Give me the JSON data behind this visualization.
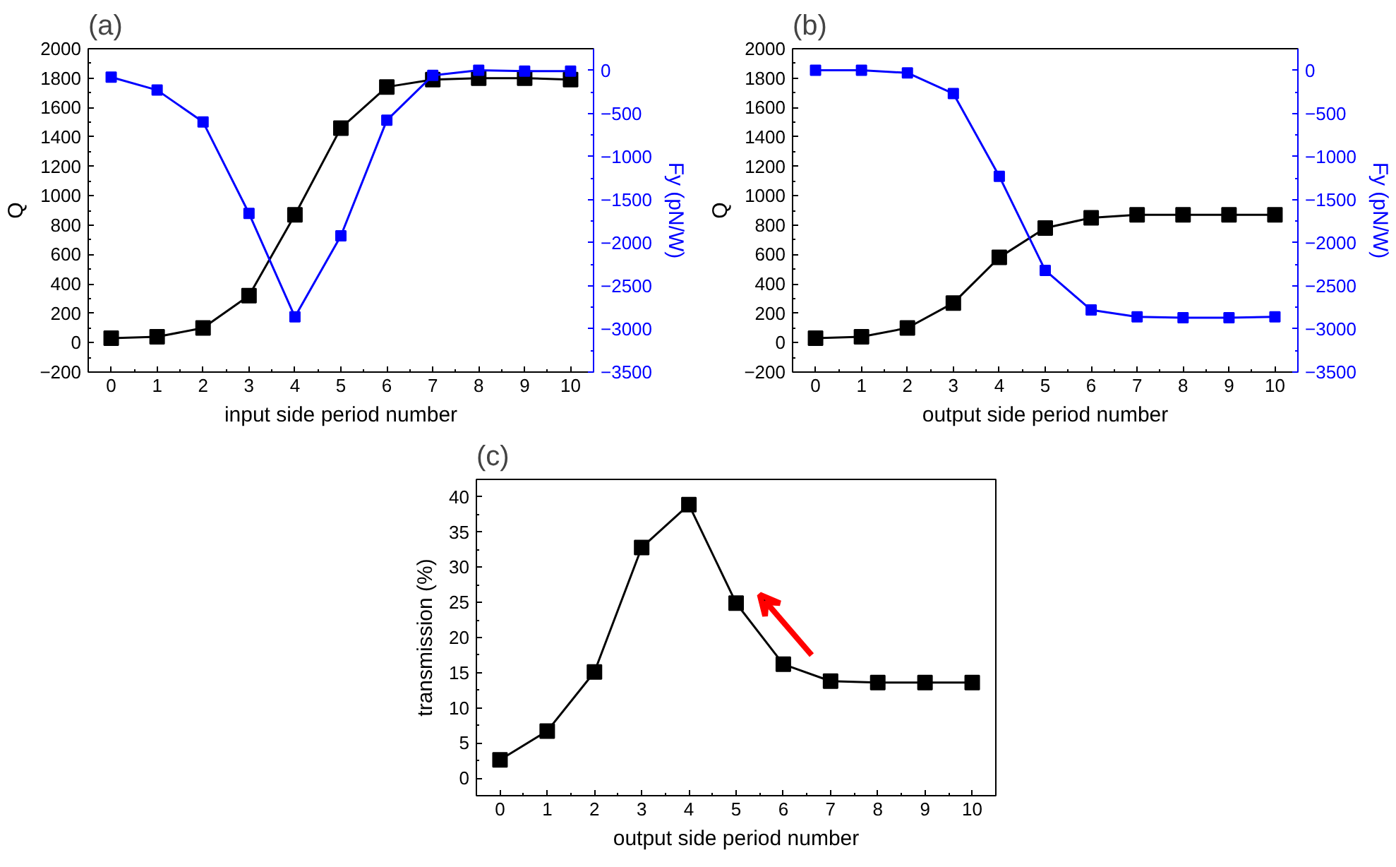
{
  "chart_data": [
    {
      "type": "line",
      "title": "(a)",
      "xlabel": "input side period number",
      "ylabel": "Q",
      "y2label": "Fy (pN/W)",
      "marker": "square",
      "x": [
        0,
        1,
        2,
        3,
        4,
        5,
        6,
        7,
        8,
        9,
        10
      ],
      "xlim": [
        -0.5,
        10.5
      ],
      "xticks": [
        0,
        1,
        2,
        3,
        4,
        5,
        6,
        7,
        8,
        9,
        10
      ],
      "ylim": [
        -200,
        2000
      ],
      "yticks": [
        -200,
        0,
        200,
        400,
        600,
        800,
        1000,
        1200,
        1400,
        1600,
        1800,
        2000
      ],
      "y2lim": [
        -3500,
        250
      ],
      "y2ticks": [
        -3500,
        -3000,
        -2500,
        -2000,
        -1500,
        -1000,
        -500,
        0
      ],
      "series": [
        {
          "color": "#000000",
          "values": [
            30,
            40,
            100,
            320,
            870,
            1460,
            1740,
            1790,
            1800,
            1800,
            1790
          ]
        },
        {
          "color": "#0000ff",
          "axis": "y2",
          "values": [
            -80,
            -230,
            -600,
            -1660,
            -2860,
            -1920,
            -580,
            -60,
            0,
            -10,
            -10
          ]
        }
      ]
    },
    {
      "type": "line",
      "title": "(b)",
      "xlabel": "output side period number",
      "ylabel": "Q",
      "y2label": "Fy (pN/W)",
      "marker": "square",
      "x": [
        0,
        1,
        2,
        3,
        4,
        5,
        6,
        7,
        8,
        9,
        10
      ],
      "xlim": [
        -0.5,
        10.5
      ],
      "xticks": [
        0,
        1,
        2,
        3,
        4,
        5,
        6,
        7,
        8,
        9,
        10
      ],
      "ylim": [
        -200,
        2000
      ],
      "yticks": [
        -200,
        0,
        200,
        400,
        600,
        800,
        1000,
        1200,
        1400,
        1600,
        1800,
        2000
      ],
      "y2lim": [
        -3500,
        250
      ],
      "y2ticks": [
        -3500,
        -3000,
        -2500,
        -2000,
        -1500,
        -1000,
        -500,
        0
      ],
      "series": [
        {
          "color": "#000000",
          "values": [
            30,
            40,
            100,
            270,
            580,
            780,
            850,
            870,
            870,
            870,
            870
          ]
        },
        {
          "color": "#0000ff",
          "axis": "y2",
          "values": [
            0,
            0,
            -30,
            -270,
            -1230,
            -2320,
            -2780,
            -2860,
            -2870,
            -2870,
            -2860
          ]
        }
      ]
    },
    {
      "type": "line",
      "title": "(c)",
      "xlabel": "output side period number",
      "ylabel": "transmission (%)",
      "marker": "square",
      "x": [
        0,
        1,
        2,
        3,
        4,
        5,
        6,
        7,
        8,
        9,
        10
      ],
      "xlim": [
        -0.5,
        10.5
      ],
      "xticks": [
        0,
        1,
        2,
        3,
        4,
        5,
        6,
        7,
        8,
        9,
        10
      ],
      "ylim": [
        -2.5,
        42.5
      ],
      "yticks": [
        0,
        5,
        10,
        15,
        20,
        25,
        30,
        35,
        40
      ],
      "series": [
        {
          "color": "#000000",
          "values": [
            2.6,
            6.7,
            15.1,
            32.8,
            38.9,
            24.9,
            16.2,
            13.8,
            13.6,
            13.6,
            13.6
          ]
        }
      ]
    }
  ]
}
